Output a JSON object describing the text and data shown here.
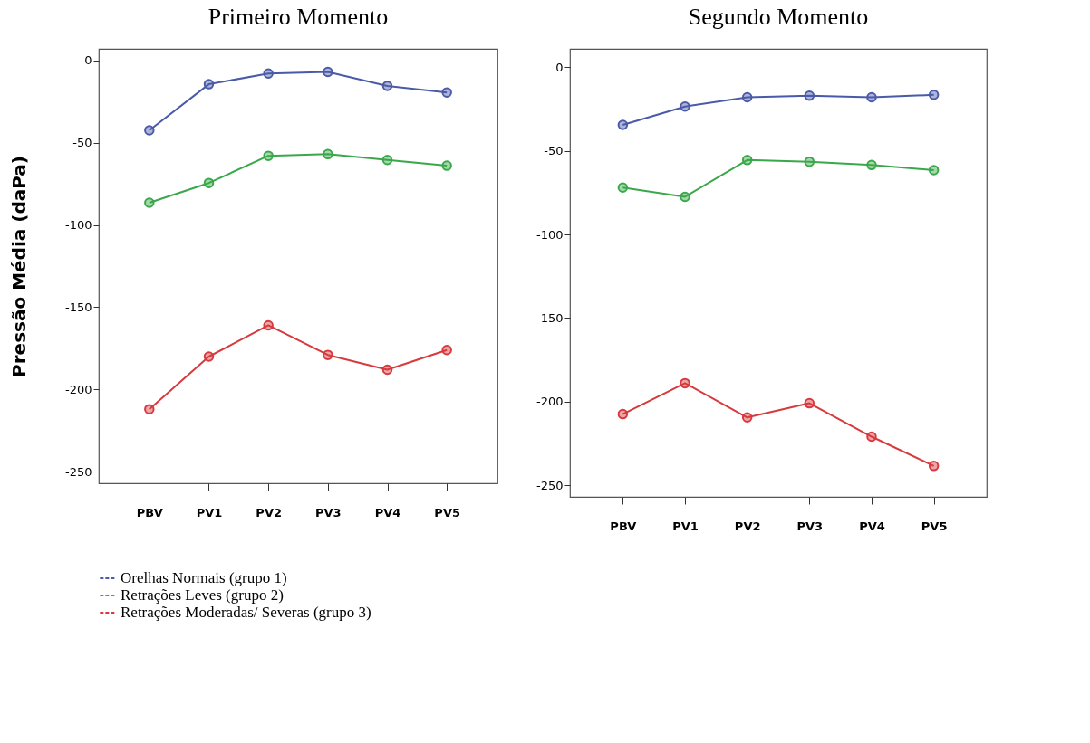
{
  "chart_data": [
    {
      "type": "line",
      "title": "Primeiro Momento",
      "ylabel": "Pressão Média (daPa)",
      "categories": [
        "PBV",
        "PV1",
        "PV2",
        "PV3",
        "PV4",
        "PV5"
      ],
      "ylim": [
        -257,
        7
      ],
      "yticks": [
        0,
        -50,
        -100,
        -150,
        -200,
        -250
      ],
      "grid": false,
      "marker": "circle",
      "legend": "bottom",
      "series": [
        {
          "name": "Orelhas Normais (grupo 1)",
          "color": "#4a5aa8",
          "values": [
            -42.5,
            -14.5,
            -8,
            -7,
            -15.5,
            -19.5
          ]
        },
        {
          "name": "Retrações Leves (grupo 2)",
          "color": "#3aa84a",
          "values": [
            -86.5,
            -74.5,
            -58,
            -57,
            -60.5,
            -64
          ]
        },
        {
          "name": "Retrações Moderadas/ Severas (grupo 3)",
          "color": "#d8393d",
          "values": [
            -212,
            -180,
            -161,
            -179,
            -188,
            -176
          ]
        }
      ]
    },
    {
      "type": "line",
      "title": "Segundo Momento",
      "categories": [
        "PBV",
        "PV1",
        "PV2",
        "PV3",
        "PV4",
        "PV5"
      ],
      "ylim": [
        -257,
        11
      ],
      "yticks": [
        0,
        -50,
        -100,
        -150,
        -200,
        -250
      ],
      "grid": false,
      "marker": "circle",
      "legend": "bottom",
      "series": [
        {
          "name": "Orelhas Normais (grupo 1)",
          "color": "#4a5aa8",
          "values": [
            -34.5,
            -23.5,
            -18,
            -17,
            -18,
            -16.5
          ]
        },
        {
          "name": "Retrações Leves (grupo 2)",
          "color": "#3aa84a",
          "values": [
            -72,
            -77.5,
            -55.5,
            -56.5,
            -58.5,
            -61.5
          ]
        },
        {
          "name": "Retrações Moderadas/ Severas (grupo 3)",
          "color": "#d8393d",
          "values": [
            -207.5,
            -189,
            -209.5,
            -201,
            -221,
            -238.5
          ]
        }
      ]
    }
  ]
}
